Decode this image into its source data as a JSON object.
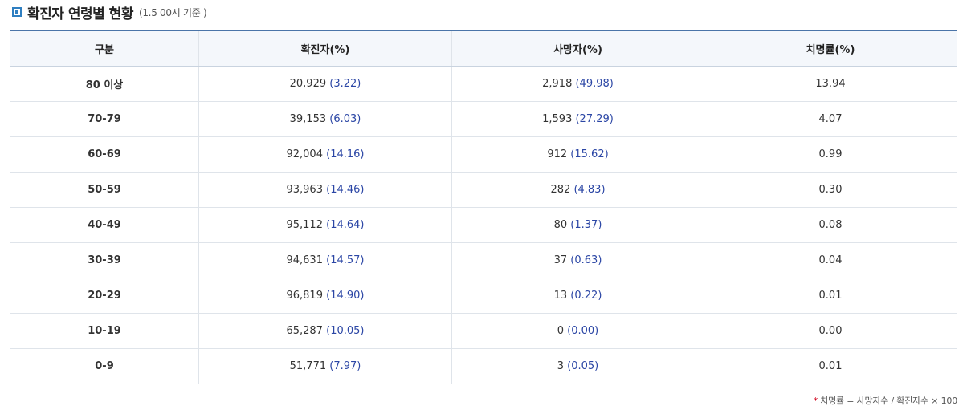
{
  "header": {
    "title": "확진자 연령별 현황",
    "note": "(1.5 00시 기준 )"
  },
  "table": {
    "columns": [
      "구분",
      "확진자(%)",
      "사망자(%)",
      "치명률(%)"
    ],
    "rows": [
      {
        "age": "80 이상",
        "cases": "20,929",
        "cases_pct": "(3.22)",
        "deaths": "2,918",
        "deaths_pct": "(49.98)",
        "fatality": "13.94"
      },
      {
        "age": "70-79",
        "cases": "39,153",
        "cases_pct": "(6.03)",
        "deaths": "1,593",
        "deaths_pct": "(27.29)",
        "fatality": "4.07"
      },
      {
        "age": "60-69",
        "cases": "92,004",
        "cases_pct": "(14.16)",
        "deaths": "912",
        "deaths_pct": "(15.62)",
        "fatality": "0.99"
      },
      {
        "age": "50-59",
        "cases": "93,963",
        "cases_pct": "(14.46)",
        "deaths": "282",
        "deaths_pct": "(4.83)",
        "fatality": "0.30"
      },
      {
        "age": "40-49",
        "cases": "95,112",
        "cases_pct": "(14.64)",
        "deaths": "80",
        "deaths_pct": "(1.37)",
        "fatality": "0.08"
      },
      {
        "age": "30-39",
        "cases": "94,631",
        "cases_pct": "(14.57)",
        "deaths": "37",
        "deaths_pct": "(0.63)",
        "fatality": "0.04"
      },
      {
        "age": "20-29",
        "cases": "96,819",
        "cases_pct": "(14.90)",
        "deaths": "13",
        "deaths_pct": "(0.22)",
        "fatality": "0.01"
      },
      {
        "age": "10-19",
        "cases": "65,287",
        "cases_pct": "(10.05)",
        "deaths": "0",
        "deaths_pct": "(0.00)",
        "fatality": "0.00"
      },
      {
        "age": "0-9",
        "cases": "51,771",
        "cases_pct": "(7.97)",
        "deaths": "3",
        "deaths_pct": "(0.05)",
        "fatality": "0.01"
      }
    ]
  },
  "footnote": {
    "star": "*",
    "text": "치명률 = 사망자수 / 확진자수 × 100"
  },
  "icons": {
    "title_marker": "square-bullet-icon"
  },
  "colors": {
    "accent": "#2f7fc1",
    "header_bg": "#f4f7fb",
    "table_top_border": "#4a74a8",
    "value_blue": "#2b46a5",
    "footnote_star": "#d0021b"
  }
}
